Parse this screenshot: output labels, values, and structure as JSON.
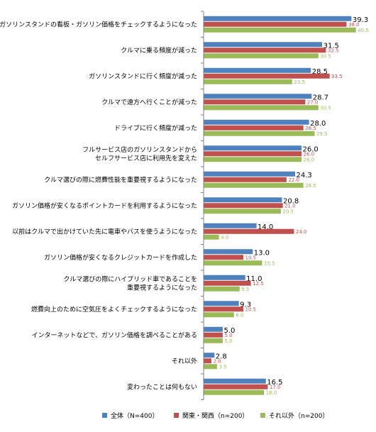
{
  "chart_data": {
    "type": "bar",
    "orientation": "horizontal",
    "xlim": [
      0,
      45
    ],
    "grid": false,
    "legend_position": "bottom",
    "categories": [
      [
        "ガソリンスタンドの看板・ガソリン価格をチェックするようになった"
      ],
      [
        "クルマに乗る頻度が減った"
      ],
      [
        "ガソリンスタンドに行く頻度が減った"
      ],
      [
        "クルマで遠方へ行くことが減った"
      ],
      [
        "ドライブに行く頻度が減った"
      ],
      [
        "フルサービス店のガソリンスタンドから",
        "セルフサービス店に利用先を変えた"
      ],
      [
        "クルマ選びの際に燃費性能を重要視するようになった"
      ],
      [
        "ガソリン価格が安くなるポイントカードを利用するようになった"
      ],
      [
        "以前はクルマで出かけていた先に電車やバスを使うようになった"
      ],
      [
        "ガソリン価格が安くなるクレジットカードを作成した"
      ],
      [
        "クルマ選びの際にハイブリッド車であることを",
        "重要視するようになった"
      ],
      [
        "燃費向上のために空気圧をよくチェックするようになった"
      ],
      [
        "インターネットなどで、ガソリン価格を調べることがある"
      ],
      [
        "それ以外"
      ],
      [
        "変わったことは何もない"
      ]
    ],
    "series": [
      {
        "name": "全体（N=400）",
        "color": "#4f81bd",
        "values": [
          39.3,
          31.5,
          28.5,
          28.7,
          28.0,
          26.0,
          24.3,
          20.8,
          14.0,
          13.0,
          11.0,
          9.3,
          5.0,
          2.8,
          16.5
        ]
      },
      {
        "name": "関東・関西（n=200）",
        "color": "#c0504d",
        "values": [
          38.0,
          32.5,
          33.5,
          27.0,
          26.5,
          26.0,
          22.0,
          21.0,
          24.0,
          10.5,
          12.5,
          10.5,
          5.0,
          2.0,
          17.0
        ]
      },
      {
        "name": "それ以外（n=200）",
        "color": "#9bbb59",
        "values": [
          40.5,
          30.5,
          23.5,
          30.5,
          29.5,
          26.0,
          26.5,
          20.5,
          4.0,
          15.5,
          9.5,
          8.0,
          5.0,
          3.5,
          16.0
        ]
      }
    ]
  }
}
